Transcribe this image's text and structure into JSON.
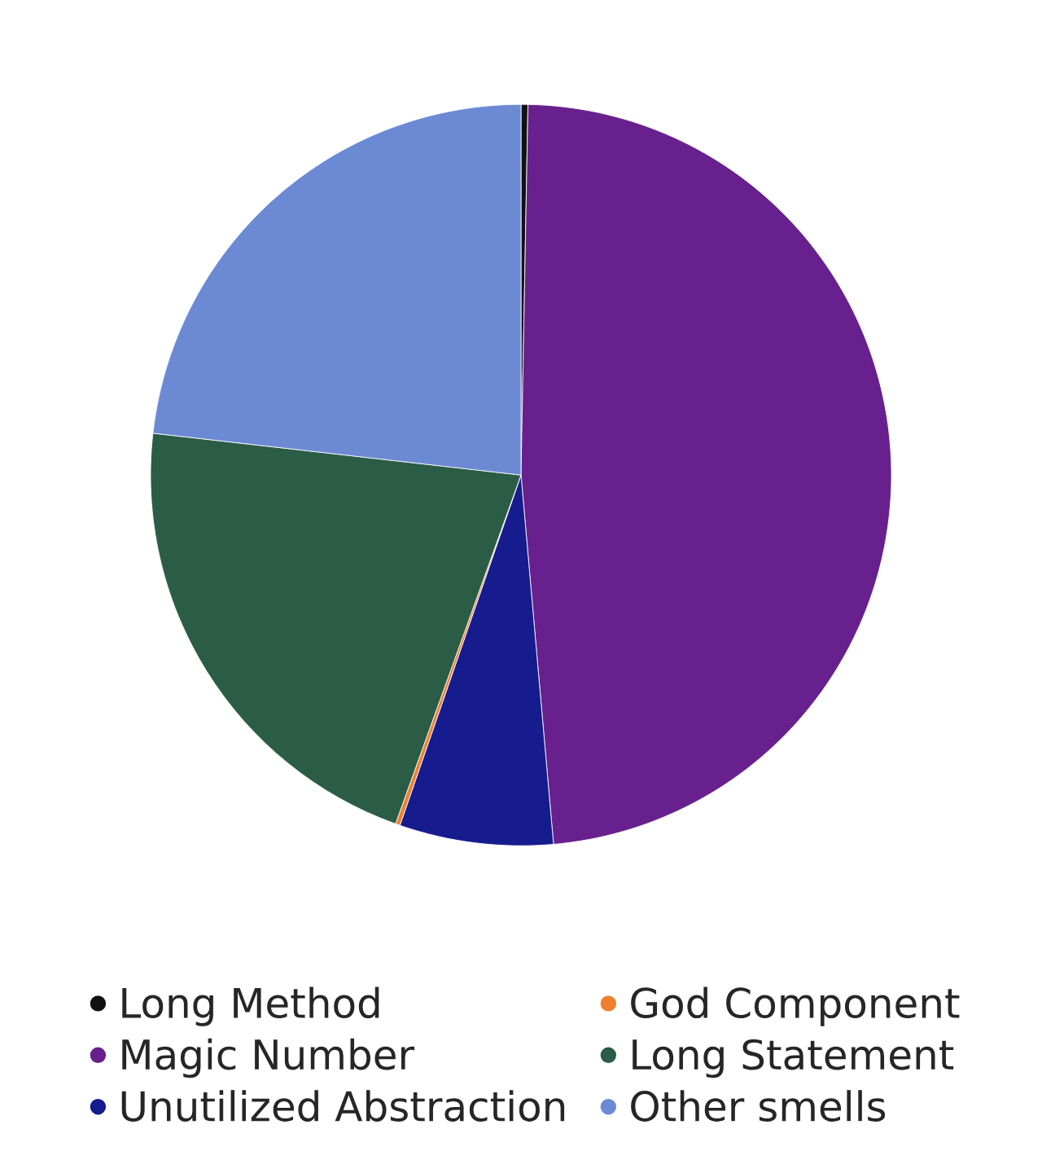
{
  "chart_data": {
    "type": "pie",
    "categories": [
      "Long Method",
      "Magic Number",
      "Unutilized Abstraction",
      "God Component",
      "Long Statement",
      "Other smells"
    ],
    "values": [
      0.3,
      48.3,
      6.7,
      0.2,
      21.3,
      23.2
    ],
    "colors": [
      "#111111",
      "#68208e",
      "#161b8e",
      "#f08030",
      "#2b5c45",
      "#6c8ad4"
    ],
    "legend": "bottom"
  }
}
